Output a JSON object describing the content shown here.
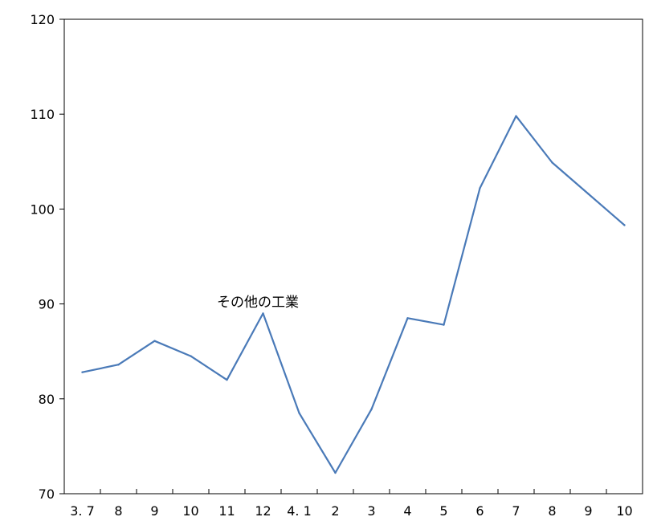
{
  "chart_data": {
    "type": "line",
    "title": "",
    "xlabel": "",
    "ylabel": "",
    "categories": [
      "3. 7",
      "8",
      "9",
      "10",
      "11",
      "12",
      "4. 1",
      "2",
      "3",
      "4",
      "5",
      "6",
      "7",
      "8",
      "9",
      "10"
    ],
    "series": [
      {
        "values": [
          82.8,
          83.6,
          86.1,
          84.5,
          82.0,
          89.0,
          78.5,
          72.2,
          78.9,
          88.5,
          87.8,
          102.2,
          109.8,
          104.9,
          101.6,
          98.3
        ],
        "color": "#4a7ab8"
      }
    ],
    "ylim": [
      70,
      120
    ],
    "yticks": [
      "70",
      "80",
      "90",
      "100",
      "110",
      "120"
    ],
    "annotation": "その他の工業",
    "grid": false
  }
}
